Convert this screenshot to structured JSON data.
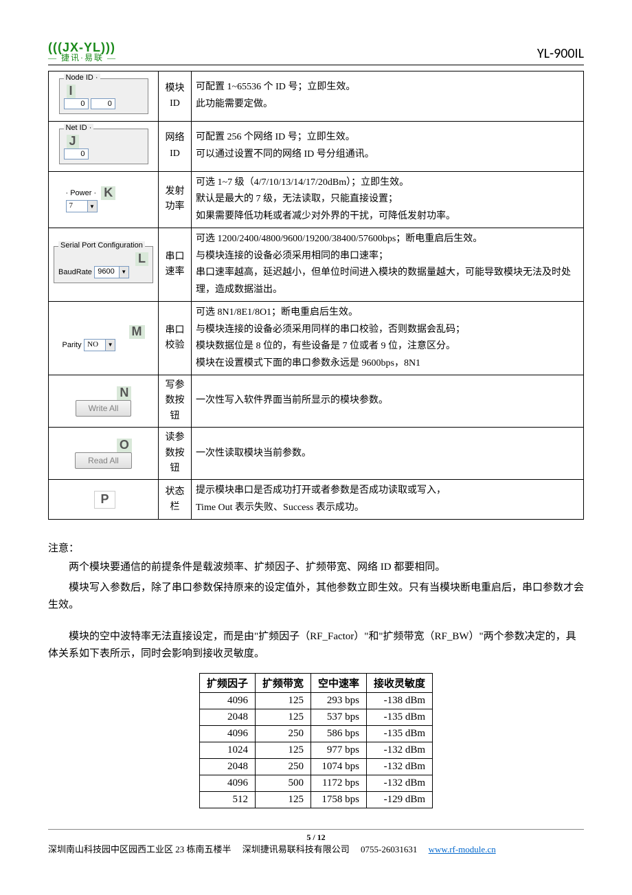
{
  "header": {
    "logo_top": "(((JX-YL)))",
    "logo_bottom": "— 捷讯·易联 —",
    "model": "YL-900IL"
  },
  "rows": [
    {
      "ui": {
        "type": "fieldset",
        "legend": "Node ID",
        "value": "0",
        "value2": "0",
        "marker": "I",
        "kind": "double-text"
      },
      "label": "模块\nID",
      "desc": "可配置 1~65536 个 ID 号；立即生效。\n此功能需要定做。"
    },
    {
      "ui": {
        "type": "fieldset",
        "legend": "Net ID",
        "value": "0",
        "marker": "J",
        "kind": "text"
      },
      "label": "网络\nID",
      "desc": "可配置 256 个网络 ID 号；立即生效。\n可以通过设置不同的网络 ID 号分组通讯。"
    },
    {
      "ui": {
        "type": "combo",
        "legend": "Power",
        "value": "7",
        "marker": "K"
      },
      "label": "发射\n功率",
      "desc": "可选 1~7 级（4/7/10/13/14/17/20dBm）；立即生效。\n默认是最大的 7 级，无法读取，只能直接设置；\n如果需要降低功耗或者减少对外界的干扰，可降低发射功率。"
    },
    {
      "ui": {
        "type": "serial",
        "legend": "Serial Port Configuration",
        "sublabel": "BaudRate",
        "value": "9600",
        "marker": "L"
      },
      "label": "串口\n速率",
      "desc": "可选 1200/2400/4800/9600/19200/38400/57600bps；断电重启后生效。\n与模块连接的设备必须采用相同的串口速率；\n串口速率越高，延迟越小，但单位时间进入模块的数据量越大，可能导致模块无法及时处理，造成数据溢出。"
    },
    {
      "ui": {
        "type": "combo",
        "legend": "",
        "sublabel": "Parity",
        "value": "NO",
        "marker": "M"
      },
      "label": "串口\n校验",
      "desc": "可选 8N1/8E1/8O1；断电重启后生效。\n与模块连接的设备必须采用同样的串口校验，否则数据会乱码；\n模块数据位是 8 位的，有些设备是 7 位或者 9 位，注意区分。\n模块在设置模式下面的串口参数永远是 9600bps，8N1"
    },
    {
      "ui": {
        "type": "button",
        "value": "Write All",
        "marker": "N"
      },
      "label": "写参\n数按\n钮",
      "desc": "一次性写入软件界面当前所显示的模块参数。"
    },
    {
      "ui": {
        "type": "button",
        "value": "Read All",
        "marker": "O"
      },
      "label": "读参\n数按\n钮",
      "desc": "一次性读取模块当前参数。"
    },
    {
      "ui": {
        "type": "marker-only",
        "marker": "P"
      },
      "label": "状态\n栏",
      "desc": "提示模块串口是否成功打开或者参数是否成功读取或写入，\nTime Out 表示失败、Success 表示成功。"
    }
  ],
  "notes": {
    "title": "注意：",
    "p1": "两个模块要通信的前提条件是载波频率、扩频因子、扩频带宽、网络 ID 都要相同。",
    "p2": "模块写入参数后，除了串口参数保持原来的设定值外，其他参数立即生效。只有当模块断电重启后，串口参数才会生效。",
    "p3": "模块的空中波特率无法直接设定，而是由\"扩频因子（RF_Factor）\"和\"扩频带宽（RF_BW）\"两个参数决定的，具体关系如下表所示，同时会影响到接收灵敏度。"
  },
  "spec_table": {
    "headers": [
      "扩频因子",
      "扩频带宽",
      "空中速率",
      "接收灵敏度"
    ],
    "rows": [
      [
        "4096",
        "125",
        "293 bps",
        "-138 dBm"
      ],
      [
        "2048",
        "125",
        "537 bps",
        "-135 dBm"
      ],
      [
        "4096",
        "250",
        "586 bps",
        "-135 dBm"
      ],
      [
        "1024",
        "125",
        "977 bps",
        "-132 dBm"
      ],
      [
        "2048",
        "250",
        "1074 bps",
        "-132 dBm"
      ],
      [
        "4096",
        "500",
        "1172 bps",
        "-132 dBm"
      ],
      [
        "512",
        "125",
        "1758 bps",
        "-129 dBm"
      ]
    ]
  },
  "footer": {
    "page": "5 / 12",
    "addr": "深圳南山科技园中区园西工业区 23 栋南五楼半",
    "company": "深圳捷讯易联科技有限公司",
    "phone": "0755-26031631",
    "url": "www.rf-module.cn"
  }
}
